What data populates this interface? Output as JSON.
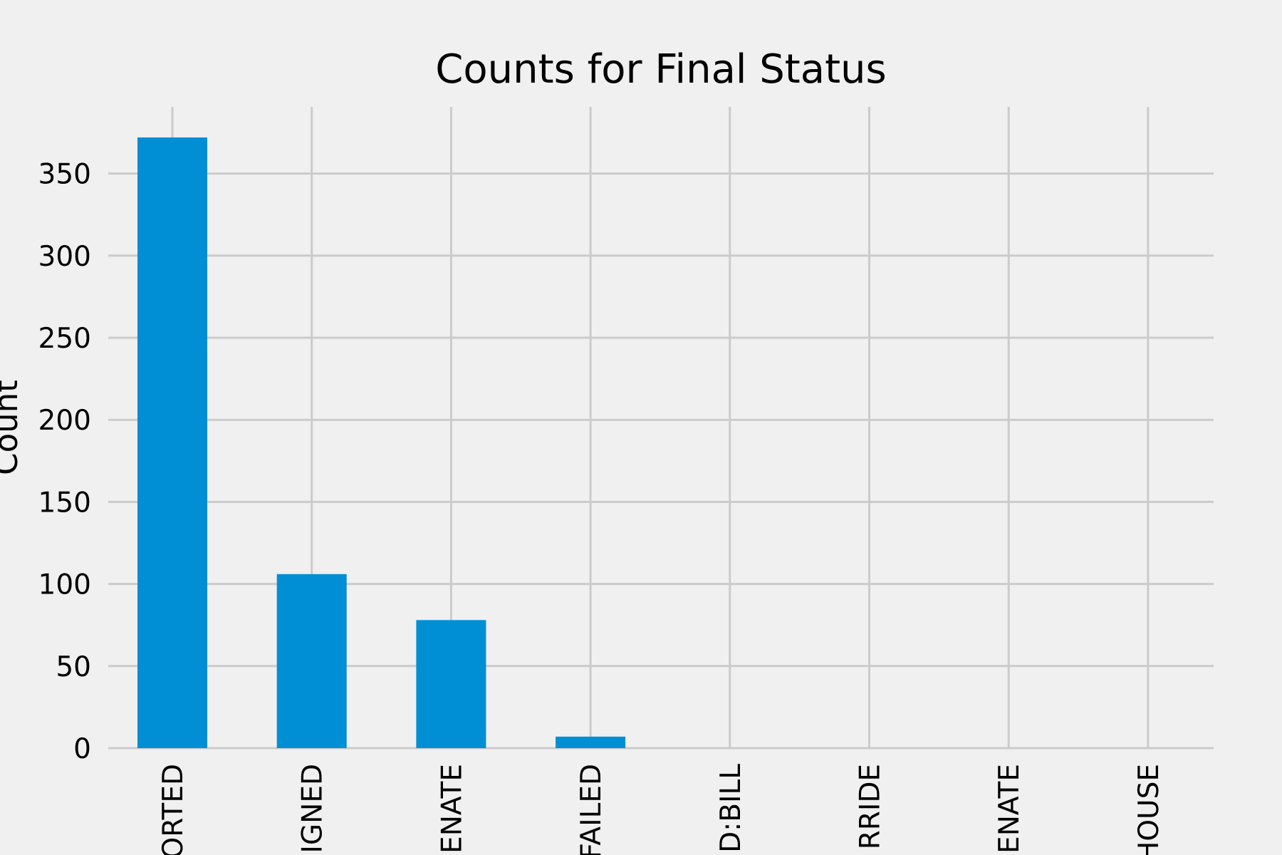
{
  "chart_data": {
    "type": "bar",
    "title": "Counts for Final Status",
    "ylabel": "Count",
    "xlabel": "",
    "categories": [
      "ORTED",
      "IGNED",
      "ENATE",
      "FAILED",
      "D:BILL",
      "RRIDE",
      "ENATE",
      "HOUSE"
    ],
    "values": [
      372,
      106,
      78,
      7,
      0,
      0,
      0,
      0
    ],
    "yticks": [
      0,
      50,
      100,
      150,
      200,
      250,
      300,
      350
    ],
    "ylim": [
      0,
      390
    ],
    "grid": true,
    "legend": "none"
  },
  "colors": {
    "background": "#f0f0f0",
    "bar": "#008fd5",
    "grid": "#cbcbcb",
    "text": "#000000"
  }
}
